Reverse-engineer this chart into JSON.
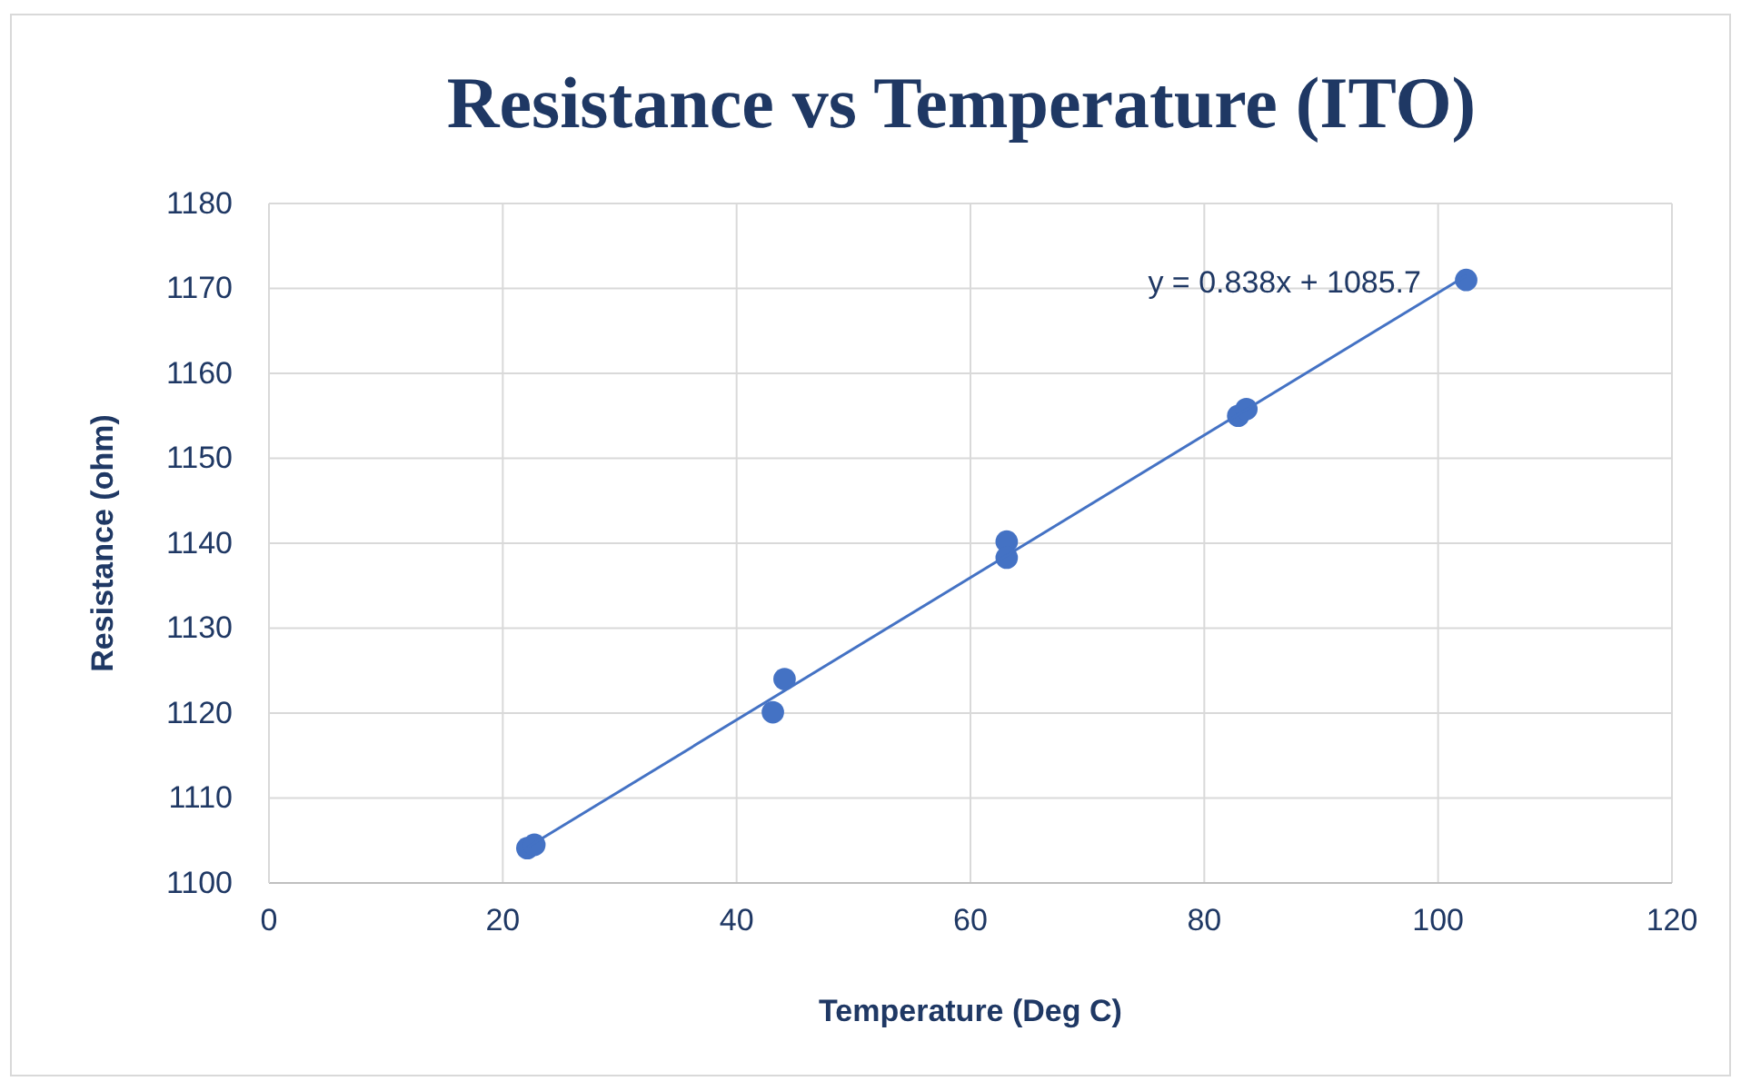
{
  "chart_data": {
    "type": "scatter",
    "title": "Resistance vs Temperature (ITO)",
    "xlabel": "Temperature (Deg C)",
    "ylabel": "Resistance (ohm)",
    "xlim": [
      0,
      120
    ],
    "xticks": [
      0,
      20,
      40,
      60,
      80,
      100,
      120
    ],
    "ylim": [
      1100,
      1180
    ],
    "yticks": [
      1100,
      1110,
      1120,
      1130,
      1140,
      1150,
      1160,
      1170,
      1180
    ],
    "grid": true,
    "series": [
      {
        "marker": "circle",
        "color": "#4472c4",
        "x": [
          22.1,
          22.7,
          43.1,
          44.1,
          63.1,
          63.1,
          82.9,
          83.6,
          102.4
        ],
        "values": [
          1104.1,
          1104.5,
          1120.1,
          1124.0,
          1140.2,
          1138.3,
          1155.0,
          1155.8,
          1171.0
        ]
      },
      {
        "type": "line",
        "marker": "none",
        "color": "#4472c4",
        "x": [
          22.1,
          102.4
        ],
        "values": [
          1104.2,
          1171.5
        ]
      }
    ],
    "annotations": [
      "y = 0.838x + 1085.7"
    ]
  }
}
